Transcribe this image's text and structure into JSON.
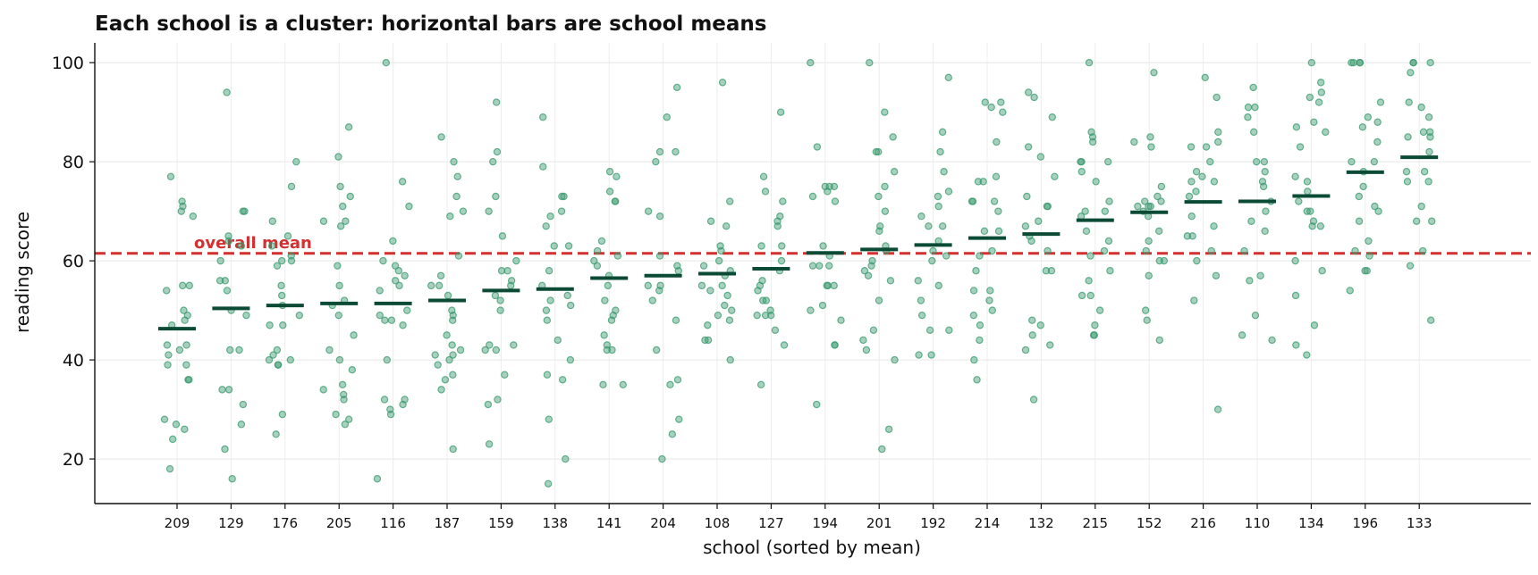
{
  "chart_data": {
    "type": "scatter",
    "title": "Each school is a cluster: horizontal bars are school means",
    "xlabel": "school (sorted by mean)",
    "ylabel": "reading score",
    "ylim": [
      11,
      104
    ],
    "yticks": [
      20,
      40,
      60,
      80,
      100
    ],
    "grid": true,
    "reference_line": {
      "value": 61.5,
      "label": "overall mean",
      "color": "#d62f2f",
      "style": "dashed"
    },
    "point_color": "#3a9a6e",
    "mean_color": "#0b4a35",
    "categories": [
      "209",
      "129",
      "176",
      "205",
      "116",
      "187",
      "159",
      "138",
      "141",
      "204",
      "108",
      "127",
      "194",
      "201",
      "192",
      "214",
      "132",
      "215",
      "152",
      "216",
      "110",
      "134",
      "196",
      "133"
    ],
    "means": [
      46.3,
      50.4,
      51.0,
      51.4,
      51.4,
      52.0,
      54.0,
      54.3,
      56.5,
      57.0,
      57.4,
      58.4,
      61.6,
      62.3,
      63.2,
      64.6,
      65.4,
      68.2,
      69.8,
      71.9,
      72.0,
      73.1,
      77.9,
      80.9
    ],
    "points": [
      [
        72,
        77,
        70,
        69,
        71,
        55,
        54,
        55,
        50,
        49,
        48,
        47,
        43,
        43,
        42,
        41,
        39,
        39,
        36,
        36,
        28,
        27,
        26,
        24,
        18
      ],
      [
        94,
        70,
        70,
        65,
        64,
        63,
        60,
        56,
        56,
        54,
        50,
        49,
        42,
        42,
        34,
        34,
        31,
        27,
        22,
        16
      ],
      [
        80,
        75,
        68,
        65,
        63,
        61,
        60,
        60,
        59,
        55,
        53,
        51,
        49,
        47,
        47,
        42,
        41,
        40,
        40,
        39,
        39,
        29,
        25
      ],
      [
        87,
        81,
        75,
        73,
        71,
        68,
        68,
        67,
        59,
        55,
        52,
        51,
        49,
        45,
        42,
        40,
        38,
        35,
        34,
        33,
        32,
        29,
        28,
        27
      ],
      [
        100,
        76,
        71,
        64,
        60,
        59,
        58,
        57,
        56,
        55,
        54,
        50,
        49,
        48,
        48,
        47,
        40,
        32,
        32,
        31,
        30,
        29,
        16
      ],
      [
        85,
        80,
        77,
        73,
        70,
        69,
        61,
        57,
        55,
        55,
        53,
        50,
        49,
        48,
        45,
        43,
        42,
        41,
        41,
        40,
        39,
        37,
        36,
        34,
        22
      ],
      [
        92,
        82,
        80,
        73,
        70,
        65,
        60,
        58,
        58,
        56,
        55,
        53,
        52,
        50,
        43,
        43,
        42,
        42,
        37,
        32,
        31,
        23
      ],
      [
        89,
        79,
        73,
        73,
        70,
        69,
        67,
        63,
        63,
        58,
        55,
        53,
        52,
        51,
        50,
        48,
        44,
        40,
        37,
        36,
        28,
        20,
        15
      ],
      [
        78,
        77,
        74,
        72,
        72,
        64,
        62,
        61,
        60,
        59,
        57,
        55,
        52,
        50,
        49,
        48,
        45,
        43,
        42,
        42,
        35,
        35
      ],
      [
        95,
        89,
        82,
        82,
        80,
        70,
        69,
        61,
        59,
        58,
        55,
        55,
        54,
        52,
        48,
        42,
        36,
        35,
        28,
        25,
        20
      ],
      [
        96,
        72,
        68,
        67,
        63,
        62,
        60,
        59,
        58,
        57,
        55,
        55,
        54,
        53,
        51,
        50,
        49,
        48,
        47,
        44,
        44,
        40
      ],
      [
        90,
        77,
        74,
        72,
        69,
        68,
        67,
        63,
        63,
        60,
        58,
        56,
        55,
        54,
        52,
        52,
        50,
        49,
        49,
        49,
        46,
        43,
        35
      ],
      [
        100,
        83,
        75,
        75,
        75,
        74,
        73,
        72,
        63,
        61,
        59,
        59,
        59,
        55,
        55,
        55,
        51,
        50,
        48,
        43,
        43,
        31
      ],
      [
        100,
        90,
        85,
        82,
        82,
        78,
        75,
        73,
        70,
        67,
        66,
        63,
        62,
        60,
        59,
        58,
        57,
        56,
        52,
        46,
        44,
        42,
        40,
        26,
        22
      ],
      [
        97,
        86,
        82,
        78,
        74,
        73,
        71,
        69,
        67,
        67,
        64,
        62,
        61,
        60,
        56,
        55,
        52,
        49,
        46,
        46,
        41,
        41
      ],
      [
        92,
        92,
        91,
        90,
        84,
        77,
        76,
        76,
        72,
        72,
        72,
        70,
        66,
        66,
        62,
        61,
        58,
        54,
        54,
        52,
        50,
        49,
        47,
        44,
        40,
        36
      ],
      [
        94,
        93,
        89,
        83,
        81,
        77,
        73,
        71,
        71,
        68,
        67,
        65,
        64,
        62,
        58,
        58,
        48,
        47,
        45,
        43,
        42,
        32
      ],
      [
        100,
        86,
        85,
        84,
        80,
        80,
        80,
        78,
        76,
        72,
        70,
        70,
        69,
        66,
        64,
        62,
        61,
        58,
        56,
        53,
        53,
        50,
        47,
        45,
        45
      ],
      [
        98,
        85,
        84,
        83,
        75,
        73,
        72,
        72,
        71,
        71,
        71,
        70,
        69,
        66,
        64,
        62,
        60,
        60,
        57,
        50,
        48,
        44
      ],
      [
        97,
        93,
        86,
        84,
        83,
        83,
        80,
        78,
        77,
        76,
        76,
        74,
        73,
        69,
        67,
        65,
        65,
        62,
        60,
        57,
        52,
        30
      ],
      [
        95,
        91,
        91,
        89,
        86,
        80,
        80,
        78,
        76,
        75,
        72,
        70,
        68,
        66,
        62,
        57,
        56,
        49,
        45,
        44
      ],
      [
        100,
        96,
        94,
        93,
        92,
        88,
        87,
        86,
        83,
        77,
        76,
        74,
        72,
        70,
        70,
        68,
        67,
        67,
        60,
        58,
        53,
        47,
        43,
        41
      ],
      [
        100,
        100,
        100,
        100,
        92,
        89,
        88,
        87,
        84,
        80,
        80,
        78,
        75,
        73,
        71,
        70,
        68,
        64,
        62,
        61,
        58,
        58,
        54
      ],
      [
        100,
        100,
        100,
        98,
        92,
        91,
        89,
        86,
        86,
        85,
        85,
        82,
        78,
        78,
        76,
        76,
        71,
        68,
        68,
        62,
        59,
        48
      ]
    ]
  }
}
